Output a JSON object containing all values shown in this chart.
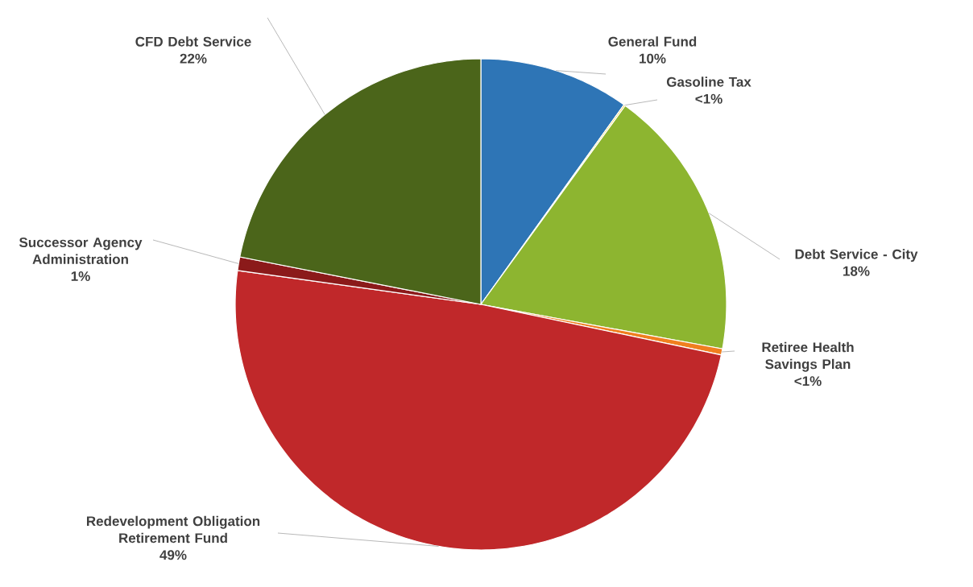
{
  "chart_data": {
    "type": "pie",
    "categories": [
      "General Fund",
      "Gasoline Tax",
      "Debt Service - City",
      "Retiree Health Savings Plan",
      "Redevelopment Obligation Retirement Fund",
      "Successor Agency Administration",
      "CFD Debt Service"
    ],
    "values": [
      9.9,
      0.1,
      17.9,
      0.4,
      48.9,
      0.9,
      21.9
    ],
    "colors": [
      "#2e75b6",
      "#ffc000",
      "#8db530",
      "#f07f1f",
      "#c0282a",
      "#8b1a1a",
      "#4b651a"
    ],
    "value_labels": [
      "10%",
      "<1%",
      "18%",
      "<1%",
      "49%",
      "1%",
      "22%"
    ]
  }
}
